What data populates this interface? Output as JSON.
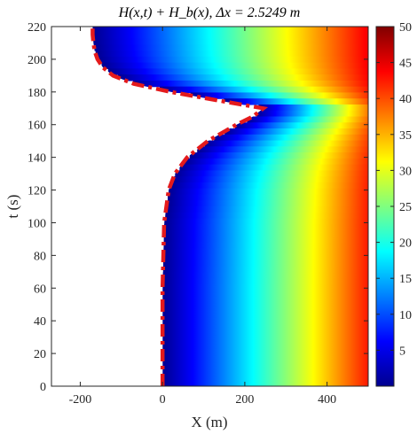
{
  "chart_data": {
    "type": "heatmap",
    "title": "H(x,t) + H_b(x),  Δx = 2.5249 m",
    "xlabel": "X (m)",
    "ylabel": "t (s)",
    "xlim": [
      -270,
      500
    ],
    "ylim": [
      0,
      220
    ],
    "x_ticks": [
      -200,
      0,
      200,
      400
    ],
    "x_tick_labels": [
      "-200",
      "0",
      "200",
      "400"
    ],
    "y_ticks": [
      0,
      20,
      40,
      60,
      80,
      100,
      120,
      140,
      160,
      180,
      200,
      220
    ],
    "y_tick_labels": [
      "0",
      "20",
      "40",
      "60",
      "80",
      "100",
      "120",
      "140",
      "160",
      "180",
      "200",
      "220"
    ],
    "colorbar": {
      "colormap": "jet",
      "range": [
        0,
        50
      ],
      "ticks": [
        5,
        10,
        15,
        20,
        25,
        30,
        35,
        40,
        45,
        50
      ],
      "tick_labels": [
        "5",
        "10",
        "15",
        "20",
        "25",
        "30",
        "35",
        "40",
        "45",
        "50"
      ]
    },
    "boundary_line": {
      "style": "dash-dot",
      "color": "#e41a1c",
      "t": [
        0,
        60,
        100,
        120,
        130,
        140,
        150,
        160,
        165,
        170,
        175,
        180,
        185,
        190,
        195,
        200,
        205,
        210,
        215,
        220
      ],
      "x": [
        0,
        0,
        4,
        15,
        30,
        60,
        110,
        180,
        220,
        245,
        130,
        20,
        -70,
        -120,
        -145,
        -158,
        -165,
        -168,
        -170,
        -170
      ]
    },
    "grid": false,
    "legend": "none"
  }
}
